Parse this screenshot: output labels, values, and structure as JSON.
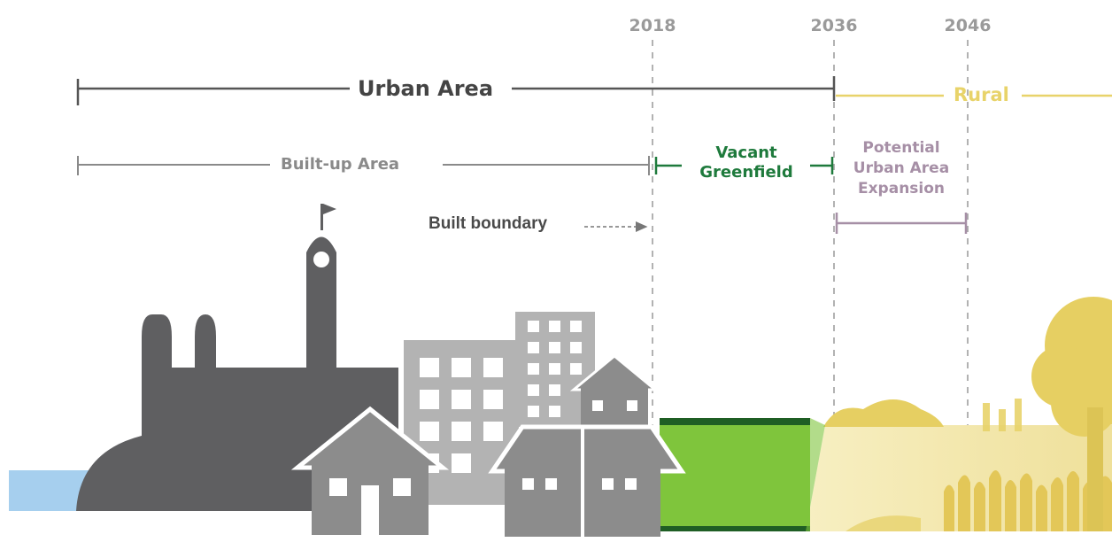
{
  "years": [
    "2018",
    "2036",
    "2046"
  ],
  "labels": {
    "urban_area": "Urban Area",
    "rural": "Rural",
    "built_up_area": "Built-up Area",
    "vacant_greenfield": [
      "Vacant",
      "Greenfield"
    ],
    "potential_expansion": [
      "Potential",
      "Urban Area",
      "Expansion"
    ],
    "built_boundary": "Built boundary"
  },
  "colors": {
    "urban_line": "#555555",
    "rural": "#e8d36a",
    "built_up": "#8a8a8a",
    "greenfield": "#1e7a3c",
    "expansion": "#a68fa6",
    "city_dark": "#5f5f61",
    "city_mid": "#8c8c8c",
    "city_light": "#b3b3b3",
    "grass": "#7fc53c",
    "water": "#a6cfee"
  }
}
